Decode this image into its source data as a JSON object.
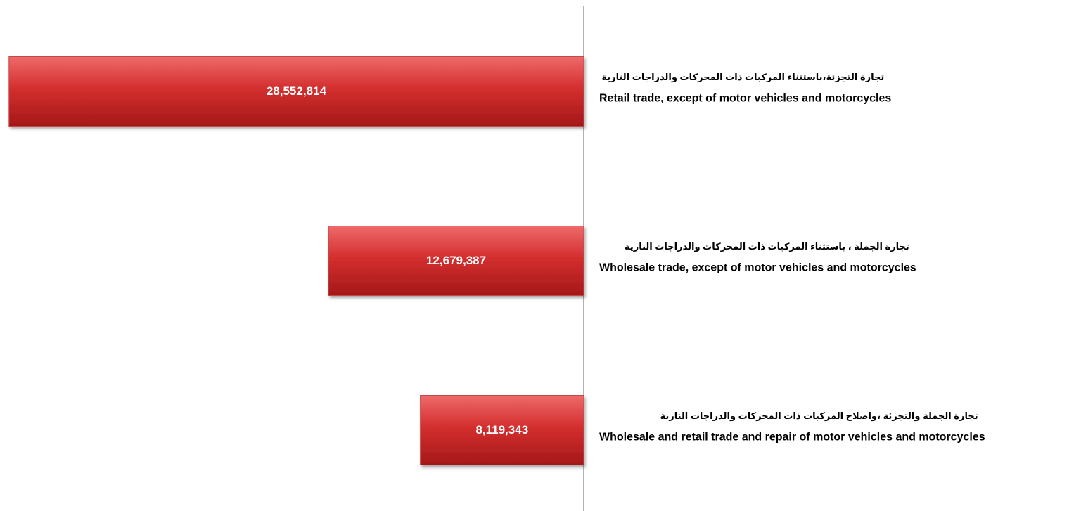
{
  "chart_data": {
    "type": "hbar",
    "categories": [
      "Retail trade, except of motor vehicles and motorcycles",
      "Wholesale trade, except of motor vehicles and motorcycles",
      "Wholesale and retail trade and repair of motor vehicles and motorcycles"
    ],
    "categories_arabic": [
      "تجارة التجزئة،باستثناء المركبات ذات المحركات والدراجات النارية",
      "تجارة الجملة ، باستثناء المركبات ذات المحركات والدراجات النارية",
      "تجارة الجملة والتجزئة ،واصلاح المركبات ذات المحركات والدراجات النارية"
    ],
    "values": [
      28552814,
      12679387,
      8119343
    ],
    "value_labels": [
      "28,552,814",
      "12,679,387",
      "8,119,343"
    ],
    "color": "#d42f2f",
    "xlim": [
      0,
      29000000
    ],
    "x_reverse": true
  }
}
